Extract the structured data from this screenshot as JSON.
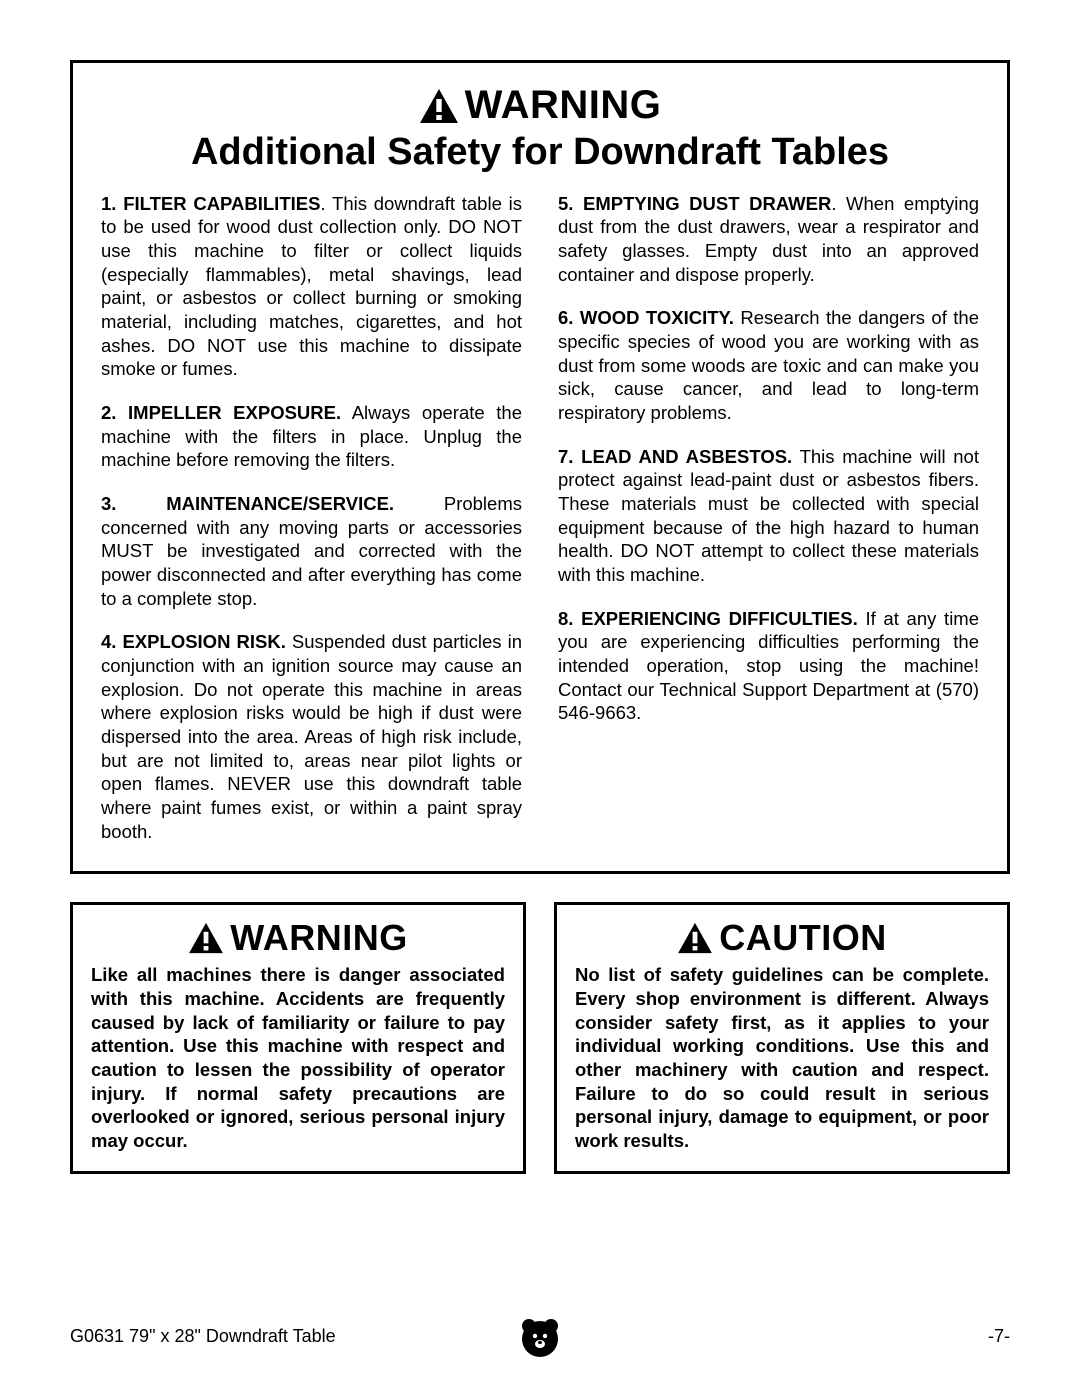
{
  "main": {
    "warning_label": "WARNING",
    "subtitle": "Additional Safety for Downdraft Tables",
    "left_items": [
      {
        "num": "1.",
        "head": "FILTER CAPABILITIES",
        "punct": ". ",
        "body": "This downdraft table is to be used for wood dust collection only. DO NOT use this machine to filter or collect liquids (especially flammables), metal shavings, lead paint, or asbestos or collect burning or smoking material, including matches, cigarettes, and hot ashes. DO NOT use this machine to dissipate smoke or fumes."
      },
      {
        "num": "2.",
        "head": "IMPELLER EXPOSURE.",
        "punct": " ",
        "body": "Always operate the machine with the filters in place. Unplug the machine before removing the filters."
      },
      {
        "num": "3.",
        "head": "MAINTENANCE/SERVICE.",
        "punct": " ",
        "body": "Problems concerned with any moving parts or accessories MUST be investigated and corrected with the power disconnected and after everything has come to a complete stop."
      },
      {
        "num": "4.",
        "head": "EXPLOSION RISK.",
        "punct": " ",
        "body": "Suspended dust particles in conjunction with an ignition source may cause an explosion. Do not operate this machine in areas where explosion risks would be high if dust were dispersed into the area. Areas of high risk include, but are not limited to, areas near pilot lights or open flames. NEVER use this downdraft table where paint fumes exist, or within a paint spray booth."
      }
    ],
    "right_items": [
      {
        "num": "5.",
        "head": "EMPTYING DUST DRAWER",
        "punct": ". ",
        "body": "When emptying dust from the dust drawers, wear a respirator and safety glasses. Empty dust into an approved container and dispose properly."
      },
      {
        "num": "6.",
        "head": "WOOD TOXICITY.",
        "punct": " ",
        "body": "Research the dangers of the specific species of wood you are working with as dust from some woods are toxic and can make you sick, cause cancer, and lead to long-term respiratory problems."
      },
      {
        "num": "7.",
        "head": "LEAD AND ASBESTOS.",
        "punct": " ",
        "body": "This machine will not protect against lead-paint dust or asbestos fibers. These materials must be collected with special equipment because of the high hazard to human health. DO NOT attempt to collect these materials with this machine."
      },
      {
        "num": "8.",
        "head": "EXPERIENCING DIFFICULTIES.",
        "punct": " ",
        "body": "If at any time you are experiencing difficulties performing the intended operation, stop using the machine! Contact our Technical Support Department at (570) 546-9663."
      }
    ]
  },
  "bottom_left": {
    "label": "WARNING",
    "body": "Like all machines there is danger associated with this machine. Accidents are frequently caused by lack of familiarity or failure to pay attention. Use this machine with respect and caution to lessen the possibility of operator injury. If normal safety precautions are overlooked or ignored, serious personal injury may occur."
  },
  "bottom_right": {
    "label": "CAUTION",
    "body": "No list of safety guidelines can be complete. Every shop environment is different. Always consider safety first, as it applies to your individual working conditions. Use this and other machinery with caution and respect. Failure to do so could result in serious personal injury, damage to equipment, or poor work results."
  },
  "footer": {
    "left": "G0631 79\" x 28\" Downdraft Table",
    "right": "-7-"
  },
  "icon_colors": {
    "triangle": "#000000",
    "bang": "#ffffff"
  },
  "badge_colors": {
    "circle": "#000000",
    "fg": "#ffffff"
  }
}
